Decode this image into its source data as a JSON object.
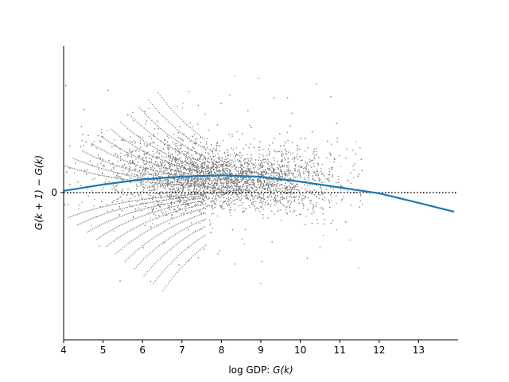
{
  "chart_data": {
    "type": "scatter",
    "title": "",
    "xlabel_plain": "log GDP: ",
    "xlabel_math": "G(k)",
    "ylabel": "G(k + 1) − G(k)",
    "xlim": [
      4,
      14
    ],
    "ylim": [
      -1.0,
      1.0
    ],
    "x_ticks": [
      4,
      5,
      6,
      7,
      8,
      9,
      10,
      11,
      12,
      13
    ],
    "y_ticks": [
      0
    ],
    "y_tick_labels": [
      "0"
    ],
    "grid": false,
    "zero_line": {
      "y": 0,
      "style": "dotted",
      "color": "#000000"
    },
    "scatter": {
      "name": "",
      "color": "#808080",
      "point_count": 6000,
      "x_range": [
        4.0,
        11.6
      ],
      "y_range": [
        -0.95,
        0.97
      ]
    },
    "fit_curve": {
      "name": "",
      "color": "#1f77b4",
      "type": "quadratic",
      "points": [
        {
          "x": 4.0,
          "y": 0.012
        },
        {
          "x": 5.0,
          "y": 0.055
        },
        {
          "x": 6.0,
          "y": 0.09
        },
        {
          "x": 7.0,
          "y": 0.11
        },
        {
          "x": 8.0,
          "y": 0.118
        },
        {
          "x": 9.0,
          "y": 0.108
        },
        {
          "x": 10.0,
          "y": 0.075
        },
        {
          "x": 11.0,
          "y": 0.035
        },
        {
          "x": 12.0,
          "y": -0.005
        },
        {
          "x": 13.0,
          "y": -0.07
        },
        {
          "x": 13.9,
          "y": -0.13
        }
      ]
    }
  }
}
